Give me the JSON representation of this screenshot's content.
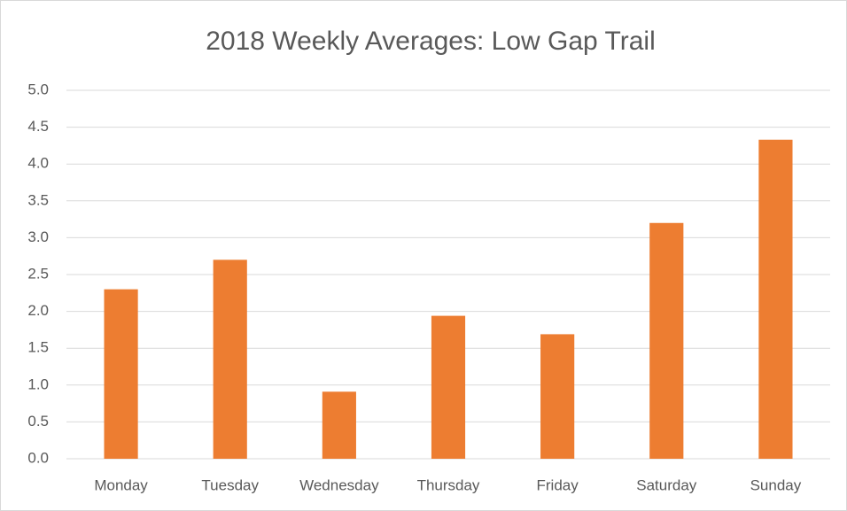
{
  "chart_data": {
    "type": "bar",
    "title": "2018 Weekly Averages: Low Gap Trail",
    "categories": [
      "Monday",
      "Tuesday",
      "Wednesday",
      "Thursday",
      "Friday",
      "Saturday",
      "Sunday"
    ],
    "values": [
      2.3,
      2.7,
      0.91,
      1.94,
      1.69,
      3.2,
      4.33
    ],
    "color": "#ed7d31",
    "ylim": [
      0,
      5
    ],
    "yticks": [
      {
        "value": 0,
        "label": "0.0"
      },
      0.5,
      {
        "value": 1,
        "label": "1.0"
      },
      1.5,
      {
        "value": 2,
        "label": "2.0"
      },
      2.5,
      {
        "value": 3,
        "label": "3.0"
      },
      3.5,
      {
        "value": 4,
        "label": "4.0"
      },
      4.5,
      {
        "value": 5,
        "label": "5.0"
      }
    ],
    "grid": true
  }
}
